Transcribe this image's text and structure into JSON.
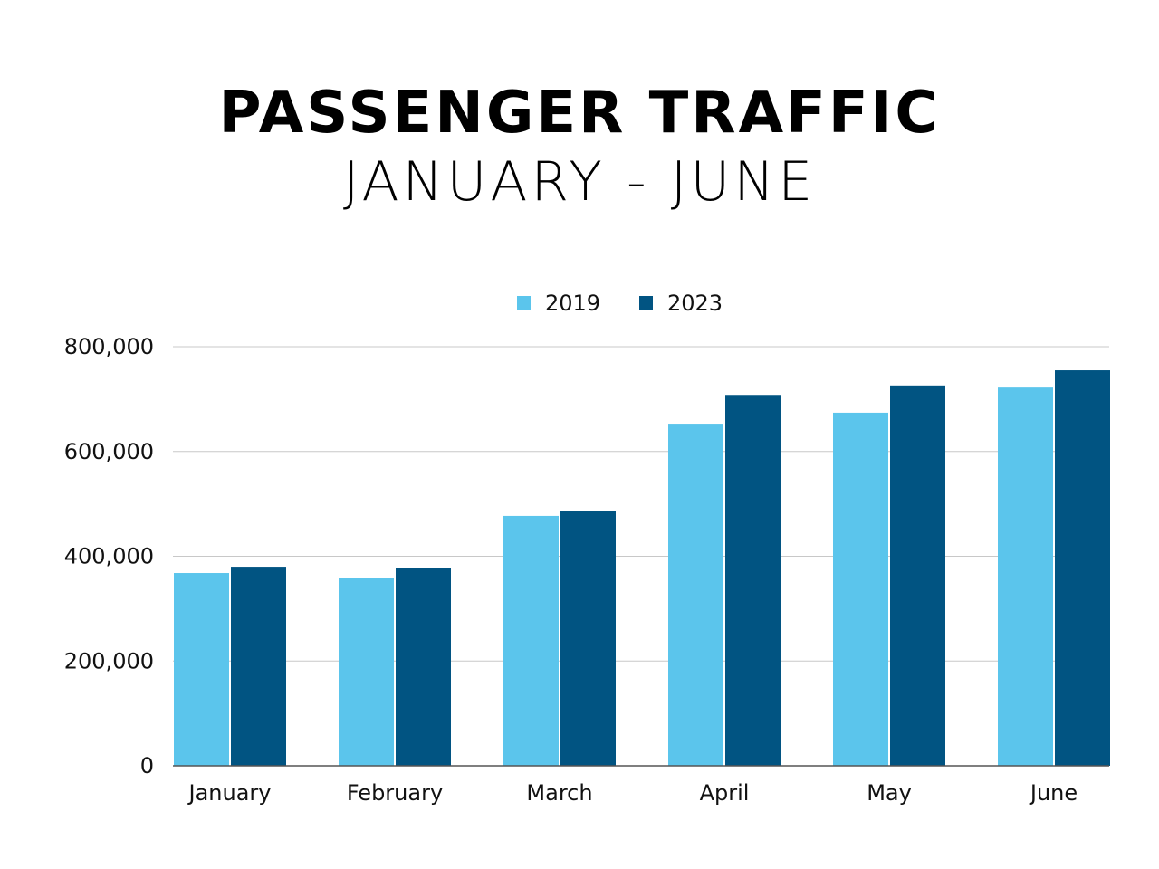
{
  "chart_data": {
    "type": "bar",
    "title": "PASSENGER TRAFFIC",
    "subtitle": "JANUARY - JUNE",
    "categories": [
      "January",
      "February",
      "March",
      "April",
      "May",
      "June"
    ],
    "series": [
      {
        "name": "2019",
        "color": "#5BC5EC",
        "values": [
          368000,
          359000,
          477000,
          653000,
          674000,
          722000
        ]
      },
      {
        "name": "2023",
        "color": "#015482",
        "values": [
          380000,
          378000,
          487000,
          708000,
          726000,
          755000
        ]
      }
    ],
    "yticks": [
      0,
      200000,
      400000,
      600000,
      800000
    ],
    "ytick_labels": [
      "0",
      "200,000",
      "400,000",
      "600,000",
      "800,000"
    ],
    "ylim": [
      0,
      800000
    ],
    "xlabel": "",
    "ylabel": "",
    "grid": true,
    "legend": "top-center"
  }
}
